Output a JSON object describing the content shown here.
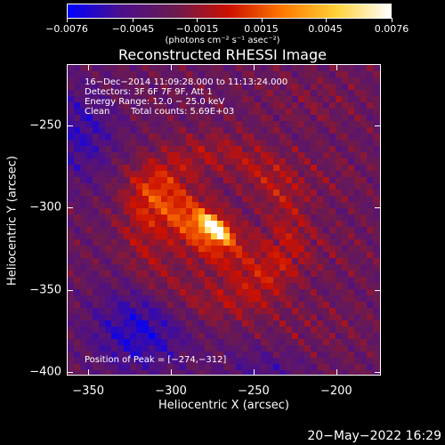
{
  "chart_data": {
    "type": "heatmap",
    "title": "Reconstructed RHESSI Image",
    "xlabel": "Heliocentric X (arcsec)",
    "ylabel": "Heliocentric Y (arcsec)",
    "xlim": [
      -363,
      -173
    ],
    "ylim": [
      -402,
      -213
    ],
    "x_ticks": [
      -350,
      -300,
      -250,
      -200
    ],
    "y_ticks": [
      -400,
      -350,
      -300,
      -250
    ],
    "x_tick_labels": [
      "−350",
      "−300",
      "−250",
      "−200"
    ],
    "y_tick_labels": [
      "−400",
      "−350",
      "−300",
      "−250"
    ],
    "colorbar": {
      "range": [
        -0.0076,
        0.0076
      ],
      "ticks": [
        -0.0076,
        -0.0045,
        -0.0015,
        0.0015,
        0.0045,
        0.0076
      ],
      "tick_labels": [
        "−0.0076",
        "−0.0045",
        "−0.0015",
        "0.0015",
        "0.0045",
        "0.0076"
      ],
      "unit": "(photons cm⁻² s⁻¹ asec⁻²)",
      "colors": [
        "#0000ff",
        "#4b0f8a",
        "#6b1a4f",
        "#cc1000",
        "#ff7a00",
        "#ffd23a",
        "#ffffff"
      ]
    },
    "peak": [
      -274,
      -312
    ],
    "annotations": {
      "time": "16−Dec−2014 11:09:28.000 to 11:13:24.000",
      "detectors": "Detectors: 3F 6F 7F 9F, Att 1",
      "energy": "Energy Range: 12.0 − 25.0 keV",
      "algorithm": "Clean",
      "counts": "Total counts: 5.69E+03",
      "peak_text": "Position of Peak = [−274,−312]"
    }
  },
  "footer": {
    "date": "20−May−2022 16:29"
  }
}
